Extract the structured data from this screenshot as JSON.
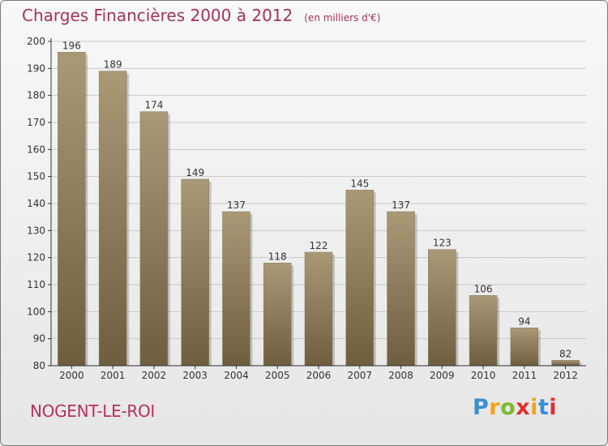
{
  "header": {
    "title": "Charges Financières 2000 à 2012",
    "subtitle": "(en milliers d'€)"
  },
  "footer": {
    "town": "NOGENT-LE-ROI",
    "brand": "Proxiti"
  },
  "colors": {
    "title": "#a0345a",
    "bar_top": "#a99977",
    "bar_bottom": "#6e5e3e",
    "axis": "#333333",
    "grid": "#c8c8c8"
  },
  "chart_data": {
    "type": "bar",
    "title": "Charges Financières 2000 à 2012",
    "categories": [
      "2000",
      "2001",
      "2002",
      "2003",
      "2004",
      "2005",
      "2006",
      "2007",
      "2008",
      "2009",
      "2010",
      "2011",
      "2012"
    ],
    "values": [
      196,
      189,
      174,
      149,
      137,
      118,
      122,
      145,
      137,
      123,
      106,
      94,
      82
    ],
    "yticks": [
      80,
      90,
      100,
      110,
      120,
      130,
      140,
      150,
      160,
      170,
      180,
      190,
      200
    ],
    "ylim": [
      80,
      200
    ],
    "grid": true,
    "legend": "none"
  }
}
